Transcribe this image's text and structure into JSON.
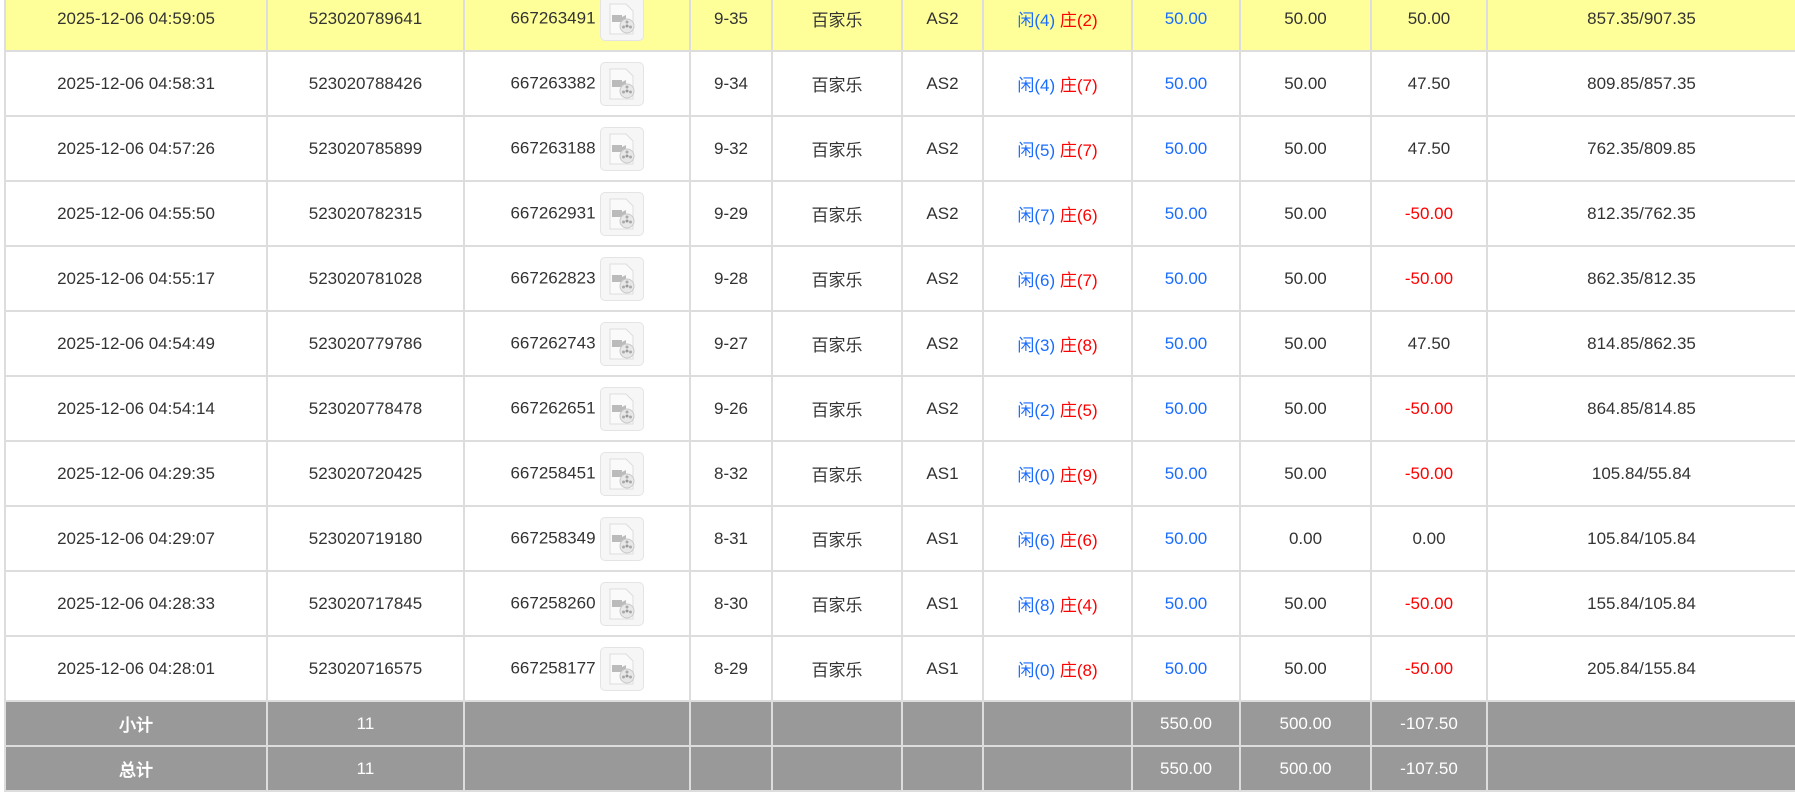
{
  "colors": {
    "player": "#1a6cff",
    "banker": "#ff0000",
    "negative": "#ff0000",
    "highlight": "#ffff99",
    "summary_bg": "#999999"
  },
  "rows": [
    {
      "time": "2025-12-06 04:59:05",
      "bet_id": "523020789641",
      "round_id": "667263491",
      "shoe": "9-35",
      "game": "百家乐",
      "table": "AS2",
      "p": "闲(4)",
      "b": "庄(2)",
      "bet": "50.00",
      "valid": "50.00",
      "win": "50.00",
      "balance": "857.35/907.35"
    },
    {
      "time": "2025-12-06 04:58:31",
      "bet_id": "523020788426",
      "round_id": "667263382",
      "shoe": "9-34",
      "game": "百家乐",
      "table": "AS2",
      "p": "闲(4)",
      "b": "庄(7)",
      "bet": "50.00",
      "valid": "50.00",
      "win": "47.50",
      "balance": "809.85/857.35"
    },
    {
      "time": "2025-12-06 04:57:26",
      "bet_id": "523020785899",
      "round_id": "667263188",
      "shoe": "9-32",
      "game": "百家乐",
      "table": "AS2",
      "p": "闲(5)",
      "b": "庄(7)",
      "bet": "50.00",
      "valid": "50.00",
      "win": "47.50",
      "balance": "762.35/809.85"
    },
    {
      "time": "2025-12-06 04:55:50",
      "bet_id": "523020782315",
      "round_id": "667262931",
      "shoe": "9-29",
      "game": "百家乐",
      "table": "AS2",
      "p": "闲(7)",
      "b": "庄(6)",
      "bet": "50.00",
      "valid": "50.00",
      "win": "-50.00",
      "balance": "812.35/762.35"
    },
    {
      "time": "2025-12-06 04:55:17",
      "bet_id": "523020781028",
      "round_id": "667262823",
      "shoe": "9-28",
      "game": "百家乐",
      "table": "AS2",
      "p": "闲(6)",
      "b": "庄(7)",
      "bet": "50.00",
      "valid": "50.00",
      "win": "-50.00",
      "balance": "862.35/812.35"
    },
    {
      "time": "2025-12-06 04:54:49",
      "bet_id": "523020779786",
      "round_id": "667262743",
      "shoe": "9-27",
      "game": "百家乐",
      "table": "AS2",
      "p": "闲(3)",
      "b": "庄(8)",
      "bet": "50.00",
      "valid": "50.00",
      "win": "47.50",
      "balance": "814.85/862.35"
    },
    {
      "time": "2025-12-06 04:54:14",
      "bet_id": "523020778478",
      "round_id": "667262651",
      "shoe": "9-26",
      "game": "百家乐",
      "table": "AS2",
      "p": "闲(2)",
      "b": "庄(5)",
      "bet": "50.00",
      "valid": "50.00",
      "win": "-50.00",
      "balance": "864.85/814.85"
    },
    {
      "time": "2025-12-06 04:29:35",
      "bet_id": "523020720425",
      "round_id": "667258451",
      "shoe": "8-32",
      "game": "百家乐",
      "table": "AS1",
      "p": "闲(0)",
      "b": "庄(9)",
      "bet": "50.00",
      "valid": "50.00",
      "win": "-50.00",
      "balance": "105.84/55.84"
    },
    {
      "time": "2025-12-06 04:29:07",
      "bet_id": "523020719180",
      "round_id": "667258349",
      "shoe": "8-31",
      "game": "百家乐",
      "table": "AS1",
      "p": "闲(6)",
      "b": "庄(6)",
      "bet": "50.00",
      "valid": "0.00",
      "win": "0.00",
      "balance": "105.84/105.84"
    },
    {
      "time": "2025-12-06 04:28:33",
      "bet_id": "523020717845",
      "round_id": "667258260",
      "shoe": "8-30",
      "game": "百家乐",
      "table": "AS1",
      "p": "闲(8)",
      "b": "庄(4)",
      "bet": "50.00",
      "valid": "50.00",
      "win": "-50.00",
      "balance": "155.84/105.84"
    },
    {
      "time": "2025-12-06 04:28:01",
      "bet_id": "523020716575",
      "round_id": "667258177",
      "shoe": "8-29",
      "game": "百家乐",
      "table": "AS1",
      "p": "闲(0)",
      "b": "庄(8)",
      "bet": "50.00",
      "valid": "50.00",
      "win": "-50.00",
      "balance": "205.84/155.84"
    }
  ],
  "subtotal": {
    "label": "小计",
    "count": "11",
    "bet": "550.00",
    "valid": "500.00",
    "win": "-107.50"
  },
  "total": {
    "label": "总计",
    "count": "11",
    "bet": "550.00",
    "valid": "500.00",
    "win": "-107.50"
  }
}
